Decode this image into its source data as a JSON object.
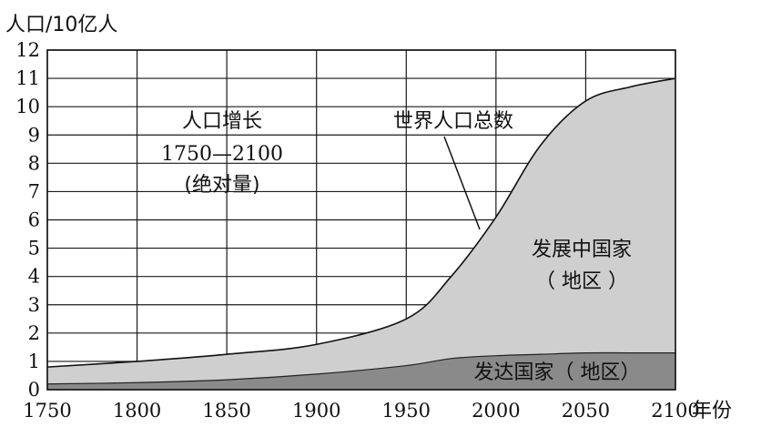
{
  "chart_data": {
    "type": "area",
    "ylabel": "人口/10亿人",
    "xlabel": "年份",
    "xlim": [
      1750,
      2100
    ],
    "ylim": [
      0,
      12
    ],
    "x_ticks": [
      "1750",
      "1800",
      "1850",
      "1900",
      "1950",
      "2000",
      "2050",
      "2100"
    ],
    "y_ticks": [
      "0",
      "1",
      "2",
      "3",
      "4",
      "5",
      "6",
      "7",
      "8",
      "9",
      "10",
      "11",
      "12"
    ],
    "grid": true,
    "x": [
      1750,
      1800,
      1850,
      1900,
      1950,
      1975,
      2000,
      2025,
      2050,
      2075,
      2100
    ],
    "series": [
      {
        "name": "发达国家（地区）",
        "values": [
          0.2,
          0.25,
          0.35,
          0.55,
          0.85,
          1.1,
          1.2,
          1.25,
          1.3,
          1.3,
          1.3
        ],
        "color": "#8a8a8a"
      },
      {
        "name": "发展中国家（地区）",
        "values": [
          0.6,
          0.75,
          0.9,
          1.05,
          1.65,
          2.9,
          4.9,
          7.4,
          8.9,
          9.4,
          9.7
        ],
        "color": "#cfcfcf"
      }
    ],
    "total": {
      "name": "世界人口总数",
      "values": [
        0.8,
        1.0,
        1.25,
        1.6,
        2.5,
        4.0,
        6.1,
        8.65,
        10.2,
        10.7,
        11.0
      ]
    },
    "annotations": {
      "growth_title": "人口增长",
      "growth_range": "1750—2100",
      "growth_note": "(绝对量)",
      "world_total": "世界人口总数",
      "developing_line1": "发展中国家",
      "developing_line2": "（ 地区 ）",
      "developed": "发达国家（ 地区）"
    }
  }
}
